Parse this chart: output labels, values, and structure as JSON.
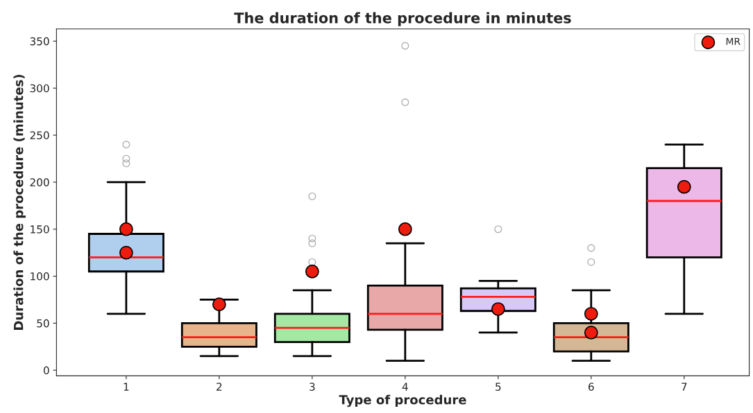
{
  "chart_data": {
    "type": "box",
    "title": "The duration of the procedure in minutes",
    "xlabel": "Type of procedure",
    "ylabel": "Duration of the procedure (minutes)",
    "categories": [
      "1",
      "2",
      "3",
      "4",
      "5",
      "6",
      "7"
    ],
    "colors": [
      "#b0cfee",
      "#e8b48c",
      "#a4e8a4",
      "#e8a8a8",
      "#d7c8f8",
      "#d4b895",
      "#ecb8e8"
    ],
    "boxes": [
      {
        "low": 60,
        "q1": 105,
        "median": 120,
        "q3": 145,
        "high": 200,
        "outliers": [
          220,
          225,
          240
        ]
      },
      {
        "low": 15,
        "q1": 25,
        "median": 35,
        "q3": 50,
        "high": 75
      },
      {
        "low": 15,
        "q1": 30,
        "median": 45,
        "q3": 60,
        "high": 85,
        "outliers": [
          115,
          135,
          140,
          185
        ]
      },
      {
        "low": 10,
        "q1": 43,
        "median": 60,
        "q3": 90,
        "high": 135,
        "outliers": [
          285,
          345
        ]
      },
      {
        "low": 40,
        "q1": 63,
        "median": 78,
        "q3": 87,
        "high": 95,
        "outliers": [
          150
        ]
      },
      {
        "low": 10,
        "q1": 20,
        "median": 35,
        "q3": 50,
        "high": 85,
        "outliers": [
          115,
          130
        ]
      },
      {
        "low": 60,
        "q1": 120,
        "median": 180,
        "q3": 215,
        "high": 240
      }
    ],
    "series": [
      {
        "type": "scatter",
        "name": "MR",
        "color": "#ee1c0e",
        "x": [
          "1",
          "1",
          "2",
          "3",
          "4",
          "5",
          "6",
          "6",
          "7"
        ],
        "values": [
          150,
          125,
          70,
          105,
          150,
          65,
          60,
          40,
          195
        ]
      }
    ],
    "ylim": [
      -6,
      363
    ],
    "yticks": [
      0,
      50,
      100,
      150,
      200,
      250,
      300,
      350
    ],
    "grid": false,
    "legend": "top right",
    "marker": "circle"
  }
}
